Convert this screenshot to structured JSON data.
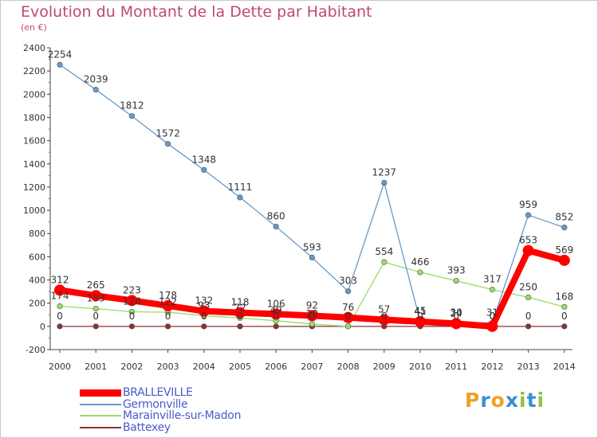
{
  "header": {
    "title": "Evolution du Montant de la Dette par Habitant",
    "unit": "(en €)"
  },
  "chart_data": {
    "type": "line",
    "title": "Evolution du Montant de la Dette par Habitant",
    "subtitle": "(en €)",
    "xlabel": "",
    "ylabel": "",
    "ylim": [
      -200,
      2400
    ],
    "yticks": [
      -200,
      0,
      200,
      400,
      600,
      800,
      1000,
      1200,
      1400,
      1600,
      1800,
      2000,
      2200,
      2400
    ],
    "x": [
      "2000",
      "2001",
      "2002",
      "2003",
      "2004",
      "2005",
      "2006",
      "2007",
      "2008",
      "2009",
      "2010",
      "2011",
      "2012",
      "2013",
      "2014"
    ],
    "grid": false,
    "legend": "bottom-left",
    "series": [
      {
        "name": "BRALLEVILLE",
        "color": "#ff0000",
        "values": [
          312,
          265,
          223,
          178,
          132,
          118,
          106,
          92,
          76,
          57,
          41,
          24,
          0,
          653,
          569
        ],
        "labels": [
          "312",
          "265",
          "223",
          "178",
          "132",
          "118",
          "106",
          "92",
          "76",
          "57",
          "41",
          "24",
          "0",
          "653",
          "569"
        ]
      },
      {
        "name": "Germonville",
        "color": "#6699cc",
        "values": [
          2254,
          2039,
          1812,
          1572,
          1348,
          1111,
          860,
          593,
          303,
          1237,
          45,
          30,
          31,
          959,
          852
        ],
        "labels": [
          "2254",
          "2039",
          "1812",
          "1572",
          "1348",
          "1111",
          "860",
          "593",
          "303",
          "1237",
          "45",
          "30",
          "31",
          "959",
          "852"
        ]
      },
      {
        "name": "Marainville-sur-Madon",
        "color": "#99dd66",
        "values": [
          174,
          153,
          126,
          122,
          93,
          72,
          49,
          20,
          0,
          554,
          466,
          393,
          317,
          250,
          168
        ],
        "labels": [
          "174",
          "153",
          "126",
          "122",
          "93",
          "72",
          "49",
          "20",
          "0",
          "554",
          "466",
          "393",
          "317",
          "250",
          "168"
        ]
      },
      {
        "name": "Battexey",
        "color": "#883333",
        "values": [
          0,
          0,
          0,
          0,
          0,
          0,
          0,
          0,
          0,
          0,
          0,
          0,
          0,
          0,
          0
        ],
        "labels": [
          "0",
          "0",
          "0",
          "0",
          "0",
          "0",
          "0",
          "0",
          "0",
          "0",
          "0",
          "0",
          "0",
          "0",
          "0"
        ]
      }
    ]
  },
  "logo": {
    "letters": [
      "P",
      "r",
      "o",
      "x",
      "i",
      "t",
      "i"
    ],
    "colors": [
      "#f0a020",
      "#3a8fd0",
      "#f0a020",
      "#3a8fd0",
      "#8cc63e",
      "#3a8fd0",
      "#8cc63e"
    ]
  }
}
